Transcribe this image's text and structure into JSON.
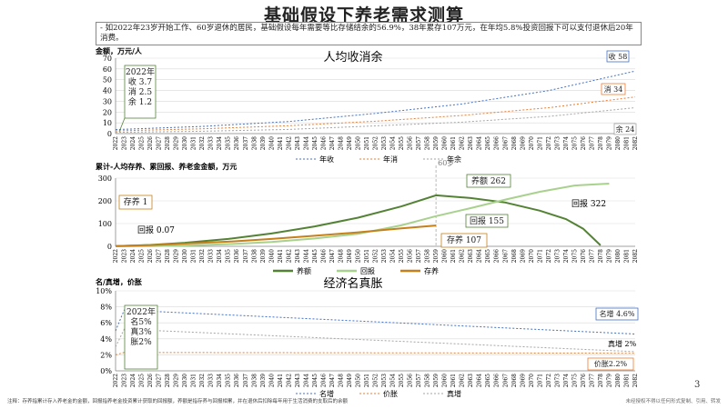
{
  "page": {
    "title": "基础假设下养老需求测算",
    "bullet": "-    如2022年23岁开始工作、60岁退休的居民，基础假设每年需要等比存储结余的56.9%，38年累存107万元，在年均5.8%投资回报下可以支付退休后20年消费。",
    "footnote": "注释：存养指累计存入养老金的金额，回报指养老金投资累计获取的回报额，养额是指存养与回报相累，并在退休后扣除每年用于生活消费的支取后的余额",
    "footer_right": "未经授权不得以任何形式复制、引用、转发",
    "page_number": "3"
  },
  "years": [
    "2022",
    "2023",
    "2024",
    "2025",
    "2026",
    "2027",
    "2028",
    "2029",
    "2030",
    "2031",
    "2032",
    "2033",
    "2034",
    "2035",
    "2036",
    "2037",
    "2038",
    "2039",
    "2040",
    "2041",
    "2042",
    "2043",
    "2044",
    "2045",
    "2046",
    "2047",
    "2048",
    "2049",
    "2050",
    "2051",
    "2052",
    "2053",
    "2054",
    "2055",
    "2056",
    "2057",
    "2058",
    "2059",
    "2060",
    "2061",
    "2062",
    "2063",
    "2064",
    "2065",
    "2066",
    "2067",
    "2068",
    "2069",
    "2070",
    "2071",
    "2072",
    "2073",
    "2074",
    "2075",
    "2076",
    "2077",
    "2078",
    "2079",
    "2080",
    "2081",
    "2082"
  ],
  "chart_data": [
    {
      "type": "line",
      "title": "人均收消余",
      "ylabel": "金额，万元/人",
      "ylim": [
        0,
        70
      ],
      "yticks": [
        0,
        10,
        20,
        30,
        40,
        50,
        60,
        70
      ],
      "x_range": [
        2022,
        2082
      ],
      "series": [
        {
          "name": "年收",
          "color": "#4472c4",
          "dash": true,
          "x": [
            2022,
            2032,
            2042,
            2052,
            2062,
            2072,
            2082
          ],
          "values": [
            3.7,
            6.7,
            11.2,
            18.7,
            27.5,
            39.9,
            58
          ]
        },
        {
          "name": "年消",
          "color": "#ed7d31",
          "dash": true,
          "x": [
            2022,
            2032,
            2042,
            2052,
            2062,
            2072,
            2082
          ],
          "values": [
            2.5,
            4.5,
            7.3,
            11.5,
            16.9,
            24,
            34
          ]
        },
        {
          "name": "年余",
          "color": "#a5a5a5",
          "dash": true,
          "x": [
            2022,
            2032,
            2042,
            2052,
            2062,
            2072,
            2082
          ],
          "values": [
            1.2,
            2.2,
            3.9,
            7.2,
            10.6,
            15.9,
            24
          ]
        }
      ],
      "annotations": [
        {
          "text": "2022年",
          "sub": [
            "收 3.7",
            "消 2.5",
            "余 1.2"
          ]
        },
        {
          "text": "收 58",
          "color": "#4472c4"
        },
        {
          "text": "消 34",
          "color": "#ed7d31"
        },
        {
          "text": "余 24",
          "color": "#a5a5a5"
        }
      ]
    },
    {
      "type": "line",
      "title": "累计-人均存养、累回报、养老金金额，万元",
      "ylim": [
        0,
        350
      ],
      "yticks": [
        0,
        100,
        200,
        300
      ],
      "x_range": [
        2022,
        2082
      ],
      "vline_label": "60岁",
      "vline_x": 2059,
      "series": [
        {
          "name": "养额",
          "color": "#548235",
          "x": [
            2022,
            2026,
            2030,
            2035,
            2040,
            2045,
            2050,
            2055,
            2059,
            2063,
            2067,
            2071,
            2074,
            2076,
            2078
          ],
          "values": [
            1,
            7,
            18,
            38,
            66,
            102,
            147,
            205,
            262,
            248,
            225,
            183,
            140,
            90,
            5
          ]
        },
        {
          "name": "回报",
          "color": "#a9d18e",
          "x": [
            2022,
            2026,
            2030,
            2035,
            2040,
            2045,
            2050,
            2055,
            2059,
            2063,
            2067,
            2071,
            2075,
            2079
          ],
          "values": [
            0.07,
            1,
            4,
            11,
            22,
            40,
            64,
            108,
            155,
            196,
            240,
            280,
            312,
            322
          ]
        },
        {
          "name": "存养",
          "color": "#c5801a",
          "x": [
            2022,
            2026,
            2030,
            2035,
            2040,
            2045,
            2050,
            2055,
            2059
          ],
          "values": [
            1,
            6,
            14,
            24,
            38,
            54,
            72,
            92,
            107
          ]
        }
      ],
      "annotations": [
        {
          "text": "存养 1",
          "color": "#c5801a"
        },
        {
          "text": "回报 0.07",
          "color": "#548235"
        },
        {
          "text": "养额 262",
          "color": "#548235"
        },
        {
          "text": "回报 155",
          "color": "#548235"
        },
        {
          "text": "存养 107",
          "color": "#c5801a"
        },
        {
          "text": "回报 322",
          "color": "#548235"
        }
      ]
    },
    {
      "type": "line",
      "title": "经济名真胀",
      "ylabel": "名/真增，价胀",
      "ylim": [
        0,
        10
      ],
      "yticks": [
        "0%",
        "2%",
        "4%",
        "6%",
        "8%",
        "10%"
      ],
      "x_range": [
        2022,
        2082
      ],
      "series": [
        {
          "name": "名增",
          "color": "#4472c4",
          "dash": true,
          "x": [
            2022,
            2023,
            2082
          ],
          "values": [
            5,
            7.6,
            4.6
          ]
        },
        {
          "name": "价胀",
          "color": "#ed7d31",
          "dash": true,
          "x": [
            2022,
            2023,
            2082
          ],
          "values": [
            2,
            2.3,
            2.2
          ]
        },
        {
          "name": "真增",
          "color": "#a5a5a5",
          "dash": true,
          "x": [
            2022,
            2023,
            2082
          ],
          "values": [
            3,
            5.2,
            2.4
          ]
        }
      ],
      "annotations": [
        {
          "text": "2022年",
          "sub": [
            "名5%",
            "真3%",
            "胀2%"
          ]
        },
        {
          "text": "名增 4.6%",
          "color": "#4472c4"
        },
        {
          "text": "真增 2%",
          "color": "#a5a5a5"
        },
        {
          "text": "价胀2.2%",
          "color": "#ed7d31"
        }
      ]
    }
  ]
}
